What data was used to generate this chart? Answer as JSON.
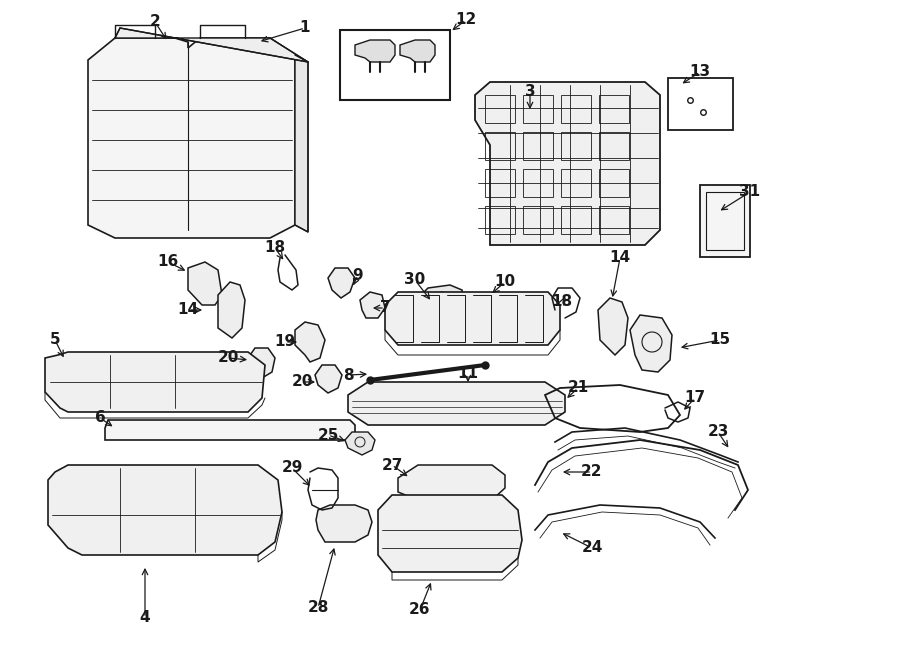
{
  "bg_color": "#ffffff",
  "line_color": "#1a1a1a",
  "figsize": [
    9.0,
    6.61
  ],
  "dpi": 100
}
